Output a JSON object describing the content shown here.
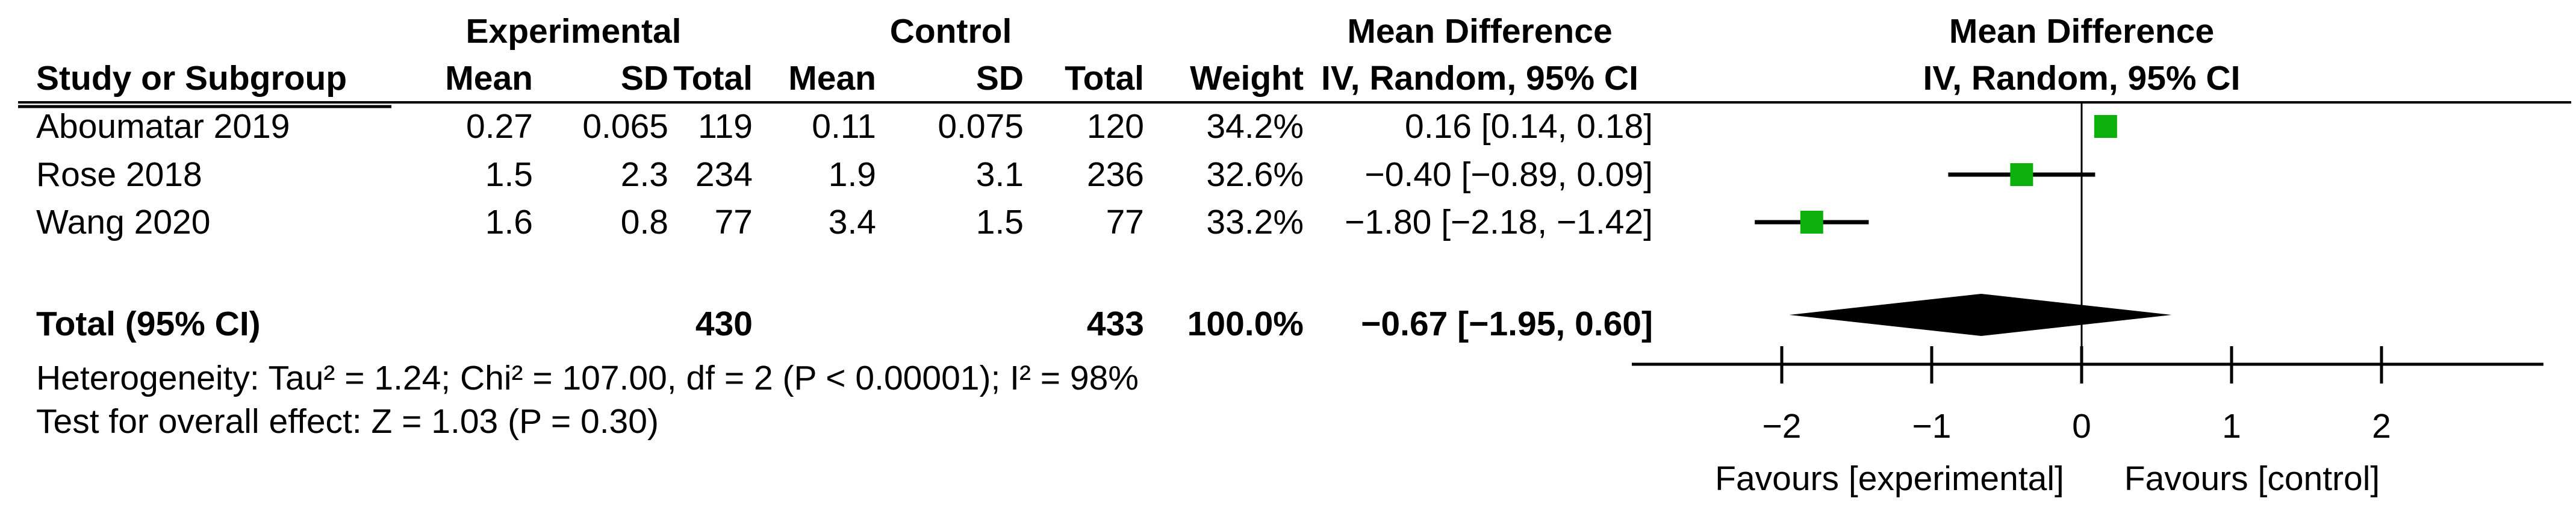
{
  "table": {
    "group_headers": {
      "experimental": "Experimental",
      "control": "Control",
      "mean_difference": "Mean Difference"
    },
    "col_headers": {
      "study": "Study or Subgroup",
      "mean": "Mean",
      "sd": "SD",
      "total": "Total",
      "weight": "Weight",
      "ci": "IV, Random, 95% CI"
    },
    "studies": [
      {
        "name": "Aboumatar 2019",
        "exp_mean": "0.27",
        "exp_sd": "0.065",
        "exp_total": "119",
        "ctl_mean": "0.11",
        "ctl_sd": "0.075",
        "ctl_total": "120",
        "weight": "34.2%",
        "ci_text": "0.16 [0.14, 0.18]"
      },
      {
        "name": "Rose 2018",
        "exp_mean": "1.5",
        "exp_sd": "2.3",
        "exp_total": "234",
        "ctl_mean": "1.9",
        "ctl_sd": "3.1",
        "ctl_total": "236",
        "weight": "32.6%",
        "ci_text": "−0.40 [−0.89, 0.09]"
      },
      {
        "name": "Wang 2020",
        "exp_mean": "1.6",
        "exp_sd": "0.8",
        "exp_total": "77",
        "ctl_mean": "3.4",
        "ctl_sd": "1.5",
        "ctl_total": "77",
        "weight": "33.2%",
        "ci_text": "−1.80 [−2.18, −1.42]"
      }
    ],
    "total_row": {
      "label": "Total (95% CI)",
      "exp_total": "430",
      "ctl_total": "433",
      "weight": "100.0%",
      "ci_text": "−0.67 [−1.95, 0.60]"
    },
    "heterogeneity": "Heterogeneity: Tau² = 1.24; Chi² = 107.00, df = 2 (P < 0.00001); I² = 98%",
    "overall_effect": "Test for overall effect: Z = 1.03 (P = 0.30)"
  },
  "chart_data": {
    "type": "scatter",
    "subtype": "forest-plot",
    "plot_header": [
      "Mean Difference",
      "IV, Random, 95% CI"
    ],
    "studies": [
      {
        "name": "Aboumatar 2019",
        "md": 0.16,
        "ci_low": 0.14,
        "ci_high": 0.18,
        "weight": 34.2
      },
      {
        "name": "Rose 2018",
        "md": -0.4,
        "ci_low": -0.89,
        "ci_high": 0.09,
        "weight": 32.6
      },
      {
        "name": "Wang 2020",
        "md": -1.8,
        "ci_low": -2.18,
        "ci_high": -1.42,
        "weight": 33.2
      }
    ],
    "total": {
      "md": -0.67,
      "ci_low": -1.95,
      "ci_high": 0.6,
      "weight": 100.0
    },
    "x_ticks": [
      "−2",
      "−1",
      "0",
      "1",
      "2"
    ],
    "x_tick_values": [
      -2,
      -1,
      0,
      1,
      2
    ],
    "xlim": [
      -3.0,
      3.08
    ],
    "grid": false,
    "marker_color": "#0cb00c",
    "line_color": "#000000",
    "footnote_left": "Favours [experimental]",
    "footnote_right": "Favours [control]"
  }
}
